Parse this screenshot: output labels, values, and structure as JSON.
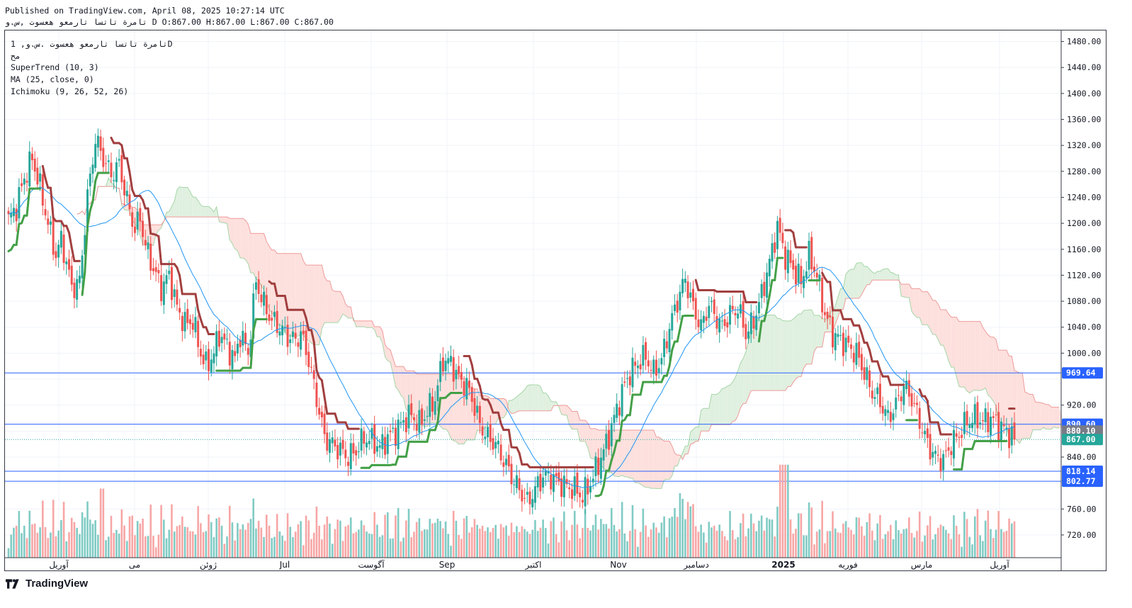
{
  "header": {
    "published": "Published on TradingView.com, April 08, 2025 10:27:14 UTC",
    "symbol_line": "تامرة تاتسا تارمعو هعسوت ,س.و D O:867.00 H:867.00 L:867.00 C:867.00"
  },
  "legend": {
    "symbol": "تامرة تاتسا تارمعو هعسوت .س.و, 1D",
    "exchange": "مح",
    "indicators": [
      "SuperTrend (10, 3)",
      "MA (25, close, 0)",
      "Ichimoku (9, 26, 52, 26)"
    ]
  },
  "logo": {
    "text": "TradingView"
  },
  "colors": {
    "up": "#26a69a",
    "down": "#ef5350",
    "supertrend_up": "#43a047",
    "supertrend_down": "#a23f3f",
    "ma": "#2196f3",
    "cloud_bear": "#fde0dd",
    "cloud_bull": "#e0f0e0",
    "hline": "#2962ff"
  },
  "chart_data": {
    "type": "candlestick",
    "timeframe": "1D",
    "y_axis": {
      "ylim": [
        685,
        1497
      ],
      "ticks": [
        720,
        760,
        800,
        840,
        880,
        920,
        960,
        1000,
        1040,
        1080,
        1120,
        1160,
        1200,
        1240,
        1280,
        1320,
        1360,
        1400,
        1440,
        1480
      ],
      "tick_labels": [
        "720.00",
        "760.00",
        "",
        "840.00",
        "",
        "920.00",
        "",
        "1000.00",
        "1040.00",
        "1080.00",
        "1120.00",
        "1160.00",
        "1200.00",
        "1240.00",
        "1280.00",
        "1320.00",
        "1360.00",
        "1400.00",
        "1440.00",
        "1480.00"
      ]
    },
    "x_axis": {
      "labels": [
        "آوریل",
        "می",
        "ژوئن",
        "Jul",
        "آگوست",
        "Sep",
        "اکتبر",
        "Nov",
        "دسامبر",
        "2025",
        "فوریه",
        "مارس",
        "آوریل"
      ],
      "bold": [
        false,
        false,
        false,
        false,
        false,
        false,
        false,
        false,
        false,
        true,
        false,
        false,
        false
      ]
    },
    "horizontal_lines": [
      969.64,
      890.6,
      818.14,
      802.77
    ],
    "price_labels": [
      {
        "text": "969.64",
        "value": 969.64,
        "color": "#2962ff"
      },
      {
        "text": "890.60",
        "value": 890.6,
        "color": "#2962ff"
      },
      {
        "text": "880.10",
        "value": 880.1,
        "color": "#787b86"
      },
      {
        "text": "867.00",
        "value": 867.0,
        "color": "#26a69a"
      },
      {
        "text": "818.14",
        "value": 818.14,
        "color": "#2962ff"
      },
      {
        "text": "802.77",
        "value": 802.77,
        "color": "#2962ff"
      }
    ],
    "last_close": 867.0,
    "price_path": [
      [
        0,
        1205
      ],
      [
        3,
        1225
      ],
      [
        6,
        1270
      ],
      [
        9,
        1300
      ],
      [
        12,
        1255
      ],
      [
        15,
        1200
      ],
      [
        18,
        1150
      ],
      [
        20,
        1175
      ],
      [
        22,
        1140
      ],
      [
        24,
        1100
      ],
      [
        27,
        1110
      ],
      [
        30,
        1240
      ],
      [
        33,
        1330
      ],
      [
        36,
        1300
      ],
      [
        39,
        1275
      ],
      [
        42,
        1290
      ],
      [
        45,
        1235
      ],
      [
        48,
        1190
      ],
      [
        50,
        1210
      ],
      [
        52,
        1165
      ],
      [
        55,
        1130
      ],
      [
        58,
        1100
      ],
      [
        61,
        1120
      ],
      [
        64,
        1070
      ],
      [
        67,
        1045
      ],
      [
        70,
        1050
      ],
      [
        73,
        1000
      ],
      [
        75,
        980
      ],
      [
        78,
        1000
      ],
      [
        80,
        1030
      ],
      [
        83,
        1010
      ],
      [
        86,
        990
      ],
      [
        88,
        1030
      ],
      [
        91,
        1000
      ],
      [
        94,
        1110
      ],
      [
        97,
        1075
      ],
      [
        100,
        1050
      ],
      [
        103,
        1040
      ],
      [
        106,
        1025
      ],
      [
        109,
        1020
      ],
      [
        111,
        1030
      ],
      [
        114,
        990
      ],
      [
        117,
        930
      ],
      [
        120,
        870
      ],
      [
        123,
        860
      ],
      [
        126,
        850
      ],
      [
        129,
        840
      ],
      [
        132,
        850
      ],
      [
        135,
        870
      ],
      [
        138,
        865
      ],
      [
        141,
        855
      ],
      [
        144,
        870
      ],
      [
        147,
        880
      ],
      [
        150,
        895
      ],
      [
        153,
        905
      ],
      [
        156,
        890
      ],
      [
        159,
        910
      ],
      [
        162,
        930
      ],
      [
        165,
        990
      ],
      [
        168,
        985
      ],
      [
        171,
        960
      ],
      [
        174,
        950
      ],
      [
        176,
        930
      ],
      [
        179,
        890
      ],
      [
        182,
        870
      ],
      [
        185,
        860
      ],
      [
        188,
        835
      ],
      [
        191,
        810
      ],
      [
        194,
        790
      ],
      [
        197,
        770
      ],
      [
        200,
        790
      ],
      [
        203,
        810
      ],
      [
        206,
        810
      ],
      [
        209,
        800
      ],
      [
        212,
        795
      ],
      [
        215,
        790
      ],
      [
        218,
        780
      ],
      [
        221,
        800
      ],
      [
        224,
        830
      ],
      [
        227,
        860
      ],
      [
        230,
        900
      ],
      [
        233,
        940
      ],
      [
        236,
        970
      ],
      [
        239,
        985
      ],
      [
        242,
        995
      ],
      [
        245,
        970
      ],
      [
        248,
        990
      ],
      [
        251,
        1040
      ],
      [
        254,
        1080
      ],
      [
        257,
        1115
      ],
      [
        260,
        1070
      ],
      [
        263,
        1040
      ],
      [
        266,
        1075
      ],
      [
        268,
        1060
      ],
      [
        271,
        1040
      ],
      [
        274,
        1060
      ],
      [
        277,
        1070
      ],
      [
        280,
        1030
      ],
      [
        283,
        1050
      ],
      [
        286,
        1090
      ],
      [
        289,
        1140
      ],
      [
        292,
        1195
      ],
      [
        295,
        1150
      ],
      [
        298,
        1130
      ],
      [
        301,
        1110
      ],
      [
        304,
        1150
      ],
      [
        307,
        1120
      ],
      [
        310,
        1060
      ],
      [
        313,
        1030
      ],
      [
        316,
        1020
      ],
      [
        319,
        1010
      ],
      [
        322,
        1000
      ],
      [
        325,
        970
      ],
      [
        328,
        940
      ],
      [
        331,
        925
      ],
      [
        334,
        900
      ],
      [
        337,
        920
      ],
      [
        340,
        950
      ],
      [
        343,
        930
      ],
      [
        346,
        895
      ],
      [
        349,
        860
      ],
      [
        352,
        840
      ],
      [
        355,
        835
      ],
      [
        358,
        860
      ],
      [
        361,
        875
      ],
      [
        364,
        895
      ],
      [
        367,
        900
      ],
      [
        370,
        895
      ],
      [
        373,
        900
      ],
      [
        376,
        888
      ],
      [
        379,
        880
      ],
      [
        382,
        867
      ]
    ]
  }
}
